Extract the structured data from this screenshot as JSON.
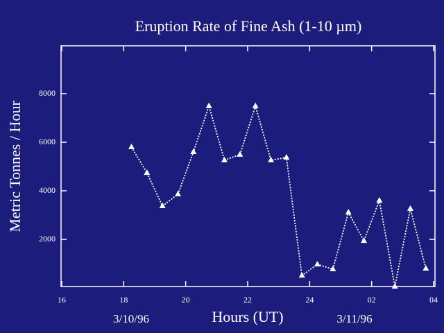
{
  "chart_data": {
    "type": "line",
    "title": "Eruption Rate of Fine Ash (1-10 µm)",
    "xlabel": "Hours (UT)",
    "ylabel": "Metric Tonnes / Hour",
    "annotations": [
      "3/10/96",
      "3/11/96"
    ],
    "x": [
      18.25,
      18.75,
      19.25,
      19.75,
      20.25,
      20.75,
      21.25,
      21.75,
      22.25,
      22.75,
      23.25,
      23.75,
      24.25,
      24.75,
      25.25,
      25.75,
      26.25,
      26.75,
      27.25,
      27.75
    ],
    "series": [
      {
        "name": "Eruption rate",
        "color": "#ffffff",
        "values": [
          5800,
          4740,
          3370,
          3860,
          5600,
          7490,
          5260,
          5490,
          7490,
          5260,
          5370,
          510,
          970,
          770,
          3110,
          1940,
          3600,
          57,
          3260,
          800
        ]
      }
    ],
    "xlim": [
      16,
      28
    ],
    "xticks": [
      16,
      18,
      20,
      22,
      24,
      {
        "value": 26,
        "label": "02"
      },
      {
        "value": 28,
        "label": "04"
      }
    ],
    "ylim": [
      0,
      10000
    ],
    "yticks": [
      2000,
      4000,
      6000,
      8000
    ]
  }
}
